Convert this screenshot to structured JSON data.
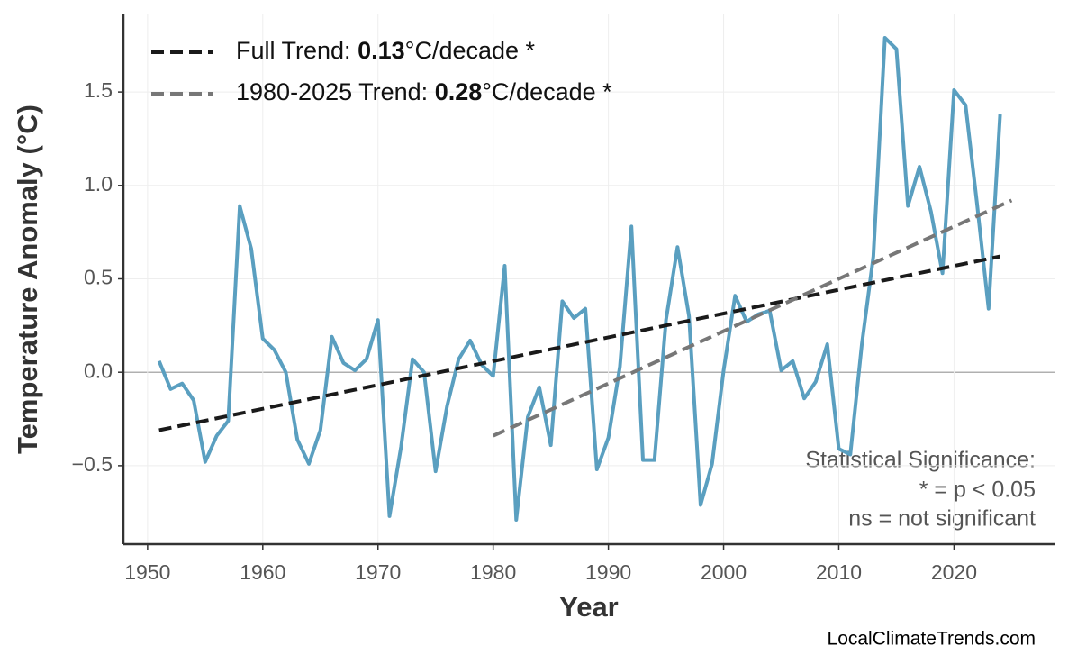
{
  "chart_data": {
    "type": "line",
    "xlabel": "Year",
    "ylabel": "Temperature Anomaly (°C)",
    "xlim": [
      1947.9,
      2028.8
    ],
    "ylim": [
      -0.92,
      1.92
    ],
    "xticks": [
      1950,
      1960,
      1970,
      1980,
      1990,
      2000,
      2010,
      2020
    ],
    "yticks": [
      {
        "value": -0.5,
        "label": "−0.5"
      },
      {
        "value": 0,
        "label": "0.0"
      },
      0.5,
      {
        "value": 1,
        "label": "1.0"
      },
      1.5
    ],
    "grid": true,
    "legend_position": "upper-left",
    "series": [
      {
        "color": "#5a9fc0",
        "x": [
          1951,
          1952,
          1953,
          1954,
          1955,
          1956,
          1957,
          1958,
          1959,
          1960,
          1961,
          1962,
          1963,
          1964,
          1965,
          1966,
          1967,
          1968,
          1969,
          1970,
          1971,
          1972,
          1973,
          1974,
          1975,
          1976,
          1977,
          1978,
          1979,
          1980,
          1981,
          1982,
          1983,
          1984,
          1985,
          1986,
          1987,
          1988,
          1989,
          1990,
          1991,
          1992,
          1993,
          1994,
          1995,
          1996,
          1997,
          1998,
          1999,
          2000,
          2001,
          2002,
          2003,
          2004,
          2005,
          2006,
          2007,
          2008,
          2009,
          2010,
          2011,
          2012,
          2013,
          2014,
          2015,
          2016,
          2017,
          2018,
          2019,
          2020,
          2021,
          2022,
          2023,
          2024
        ],
        "values": [
          0.06,
          -0.09,
          -0.06,
          -0.15,
          -0.48,
          -0.34,
          -0.26,
          0.89,
          0.66,
          0.18,
          0.12,
          0.0,
          -0.36,
          -0.49,
          -0.31,
          0.19,
          0.05,
          0.01,
          0.07,
          0.28,
          -0.77,
          -0.4,
          0.07,
          0.0,
          -0.53,
          -0.18,
          0.07,
          0.17,
          0.04,
          -0.02,
          0.57,
          -0.79,
          -0.24,
          -0.08,
          -0.39,
          0.38,
          0.29,
          0.34,
          -0.52,
          -0.35,
          0.03,
          0.78,
          -0.47,
          -0.47,
          0.28,
          0.67,
          0.3,
          -0.71,
          -0.49,
          0.01,
          0.41,
          0.27,
          0.31,
          0.33,
          0.01,
          0.06,
          -0.14,
          -0.05,
          0.15,
          -0.41,
          -0.44,
          0.15,
          0.62,
          1.79,
          1.73,
          0.89,
          1.1,
          0.86,
          0.53,
          1.51,
          1.43,
          0.9,
          0.34,
          1.38
        ]
      },
      {
        "name": "Full Trend:",
        "slope": 0.13,
        "slope_unit": "°C/decade *",
        "color": "#1a1a1a",
        "dashed": true,
        "x": [
          1951,
          2024
        ],
        "values": [
          -0.31,
          0.62
        ]
      },
      {
        "name": "1980-2025 Trend:",
        "slope": 0.28,
        "slope_unit": "°C/decade *",
        "color": "#777777",
        "dashed": true,
        "x": [
          1980,
          2025
        ],
        "values": [
          -0.34,
          0.92
        ]
      }
    ],
    "annotation": [
      "Statistical Significance:",
      "* = p < 0.05",
      "ns = not significant"
    ],
    "source": "LocalClimateTrends.com"
  }
}
